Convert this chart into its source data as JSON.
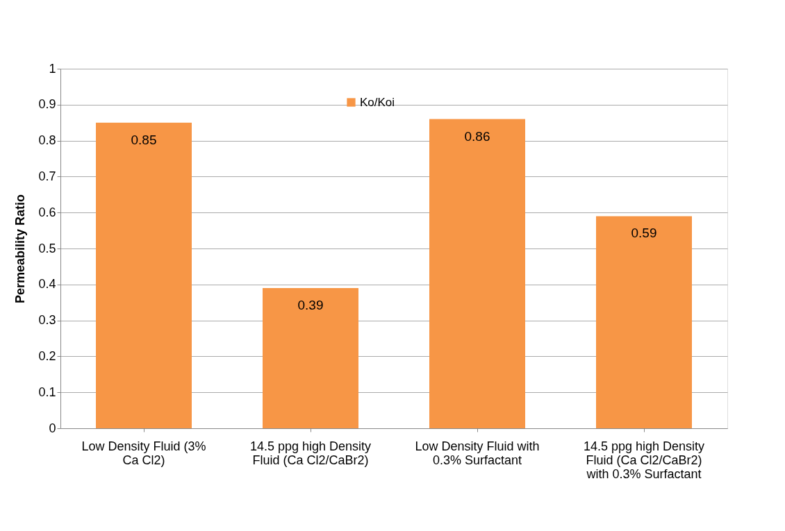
{
  "chart_data": {
    "type": "bar",
    "ylabel": "Permeability Ratio",
    "categories": [
      "Low Density Fluid (3% Ca Cl2)",
      "14.5 ppg high Density Fluid (Ca Cl2/CaBr2)",
      "Low Density Fluid with 0.3% Surfactant",
      "14.5 ppg high Density Fluid (Ca Cl2/CaBr2) with 0.3% Surfactant"
    ],
    "series": [
      {
        "name": "Ko/Koi",
        "color": "#f79646",
        "values": [
          0.85,
          0.39,
          0.86,
          0.59
        ]
      }
    ],
    "ylim": [
      0,
      1
    ],
    "yticks": [
      0,
      0.1,
      0.2,
      0.3,
      0.4,
      0.5,
      0.6,
      0.7,
      0.8,
      0.9,
      1
    ],
    "grid": "y",
    "legend": "top",
    "data_labels": true
  }
}
